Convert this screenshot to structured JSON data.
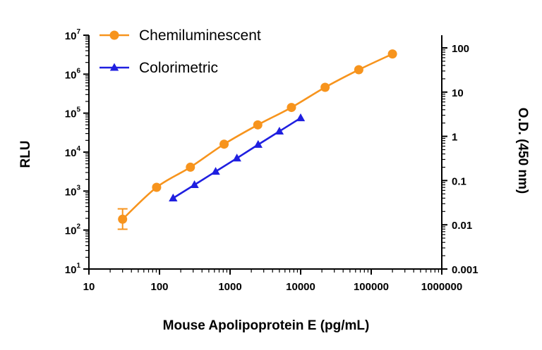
{
  "chart_data": {
    "type": "line",
    "title": "",
    "xlabel": "Mouse Apolipoprotein E (pg/mL)",
    "ylabel": "RLU",
    "y2label": "O.D. (450 nm)",
    "x_scale": "log",
    "y_scale": "log",
    "y2_scale": "log",
    "xlim": [
      10,
      1000000
    ],
    "ylim": [
      10,
      10000000
    ],
    "y2lim": [
      0.001,
      200
    ],
    "x_ticks": [
      10,
      100,
      1000,
      10000,
      100000,
      1000000
    ],
    "x_tick_labels": [
      "10",
      "100",
      "1000",
      "10000",
      "100000",
      "1000000"
    ],
    "y_ticks": [
      10,
      100,
      1000,
      10000,
      100000,
      1000000,
      10000000
    ],
    "y_tick_labels": [
      {
        "base": "10",
        "exp": "1"
      },
      {
        "base": "10",
        "exp": "2"
      },
      {
        "base": "10",
        "exp": "3"
      },
      {
        "base": "10",
        "exp": "4"
      },
      {
        "base": "10",
        "exp": "5"
      },
      {
        "base": "10",
        "exp": "6"
      },
      {
        "base": "10",
        "exp": "7"
      }
    ],
    "y2_ticks": [
      0.001,
      0.01,
      0.1,
      1,
      10,
      100
    ],
    "y2_tick_labels": [
      "0.001",
      "0.01",
      "0.1",
      "1",
      "10",
      "100"
    ],
    "legend_position": "top-left",
    "series": [
      {
        "name": "Chemiluminescent",
        "axis": "left",
        "color": "#F7941D",
        "marker": "circle",
        "x": [
          30,
          91,
          274,
          823,
          2469,
          7407,
          22222,
          66667,
          200000
        ],
        "y": [
          190,
          1250,
          4100,
          16000,
          50000,
          140000,
          460000,
          1300000,
          3300000
        ],
        "error": [
          {
            "x": 30,
            "low": 105,
            "high": 350
          }
        ]
      },
      {
        "name": "Colorimetric",
        "axis": "right",
        "color": "#1F1FE0",
        "marker": "triangle",
        "x": [
          156,
          313,
          625,
          1250,
          2500,
          5000,
          10000
        ],
        "y": [
          0.04,
          0.08,
          0.16,
          0.32,
          0.65,
          1.3,
          2.6
        ]
      }
    ]
  }
}
